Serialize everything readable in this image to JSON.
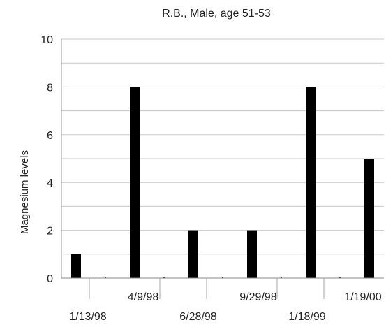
{
  "chart_data": {
    "type": "bar",
    "title": "R.B., Male, age 51-53",
    "xlabel": "",
    "ylabel": "Magnesium levels",
    "ylim": [
      0,
      10
    ],
    "yticks": [
      0,
      2,
      4,
      6,
      8,
      10
    ],
    "grid": true,
    "legend": "none",
    "bar_color": "#000000",
    "categories": [
      "1/13/98",
      "",
      "4/9/98",
      "",
      "6/28/98",
      "",
      "9/29/98",
      "",
      "1/18/99",
      "",
      "1/19/00"
    ],
    "values": [
      1,
      0,
      8,
      0,
      2,
      0,
      2,
      0,
      8,
      0,
      5
    ],
    "x_tick_labels_upper": [
      "4/9/98",
      "9/29/98",
      "1/19/00"
    ],
    "x_tick_labels_lower": [
      "1/13/98",
      "6/28/98",
      "1/18/99"
    ]
  }
}
